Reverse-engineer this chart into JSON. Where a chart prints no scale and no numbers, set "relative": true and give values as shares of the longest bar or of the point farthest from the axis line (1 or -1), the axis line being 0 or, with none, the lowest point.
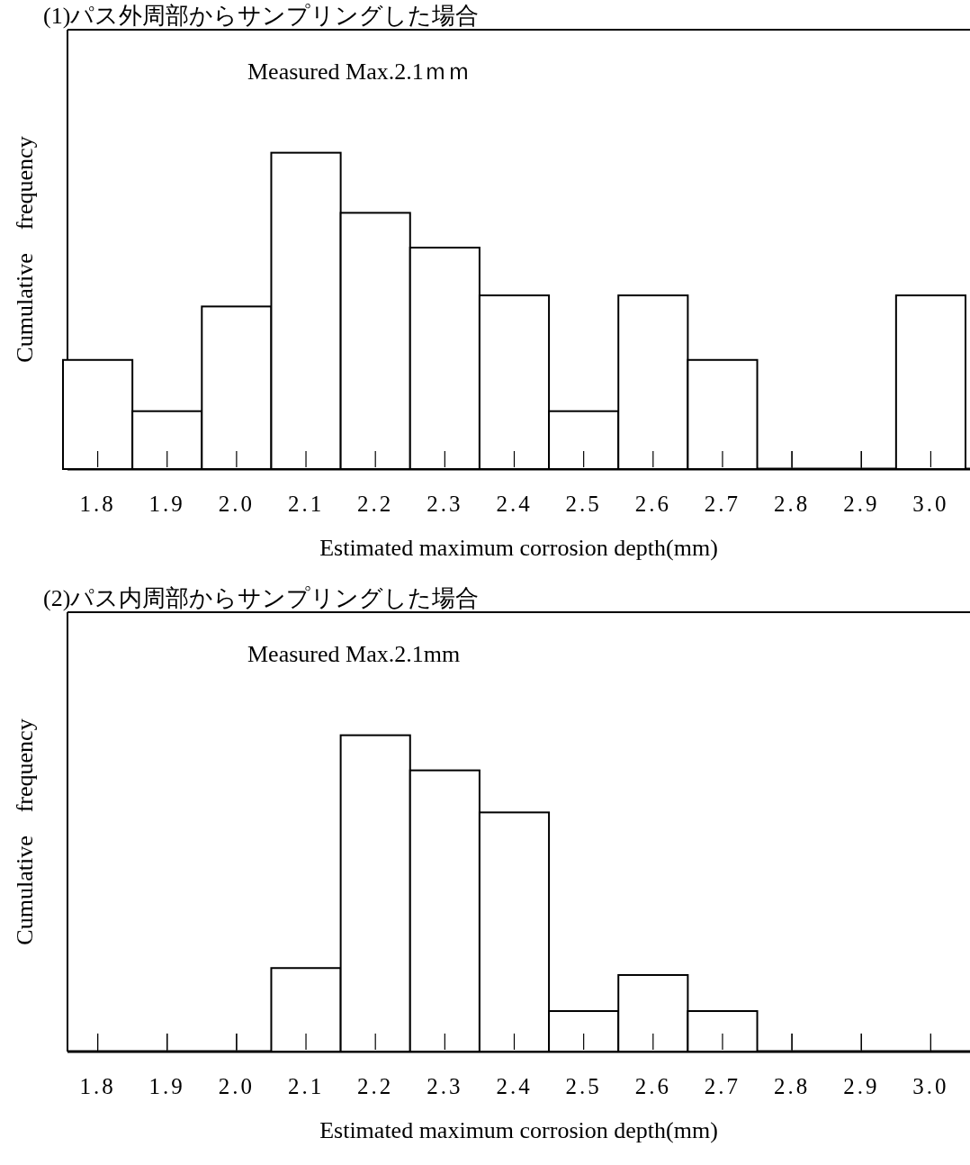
{
  "chart_data": [
    {
      "type": "bar",
      "title": "(1)パス外周部からサンプリングした場合",
      "xlabel": "Estimated maximum corrosion depth(mm)",
      "ylabel": "Cumulative　frequency",
      "annotations": [
        "Measured Max.2.1ｍｍ"
      ],
      "relative": true,
      "color": "#ffffff",
      "categories": [
        "1.8",
        "1.9",
        "2.0",
        "2.1",
        "2.2",
        "2.3",
        "2.4",
        "2.5",
        "2.6",
        "2.7",
        "2.8",
        "2.9",
        "3.0"
      ],
      "values": [
        0.345,
        0.183,
        0.514,
        1,
        0.81,
        0.7,
        0.549,
        0.183,
        0.549,
        0.345,
        0,
        0,
        0.549
      ]
    },
    {
      "type": "bar",
      "title": "(2)パス内周部からサンプリングした場合",
      "xlabel": "Estimated maximum corrosion depth(mm)",
      "ylabel": "Cumulative　frequency",
      "annotations": [
        "Measured Max.2.1mm"
      ],
      "relative": true,
      "color": "#ffffff",
      "categories": [
        "1.8",
        "1.9",
        "2.0",
        "2.1",
        "2.2",
        "2.3",
        "2.4",
        "2.5",
        "2.6",
        "2.7",
        "2.8",
        "2.9",
        "3.0"
      ],
      "values": [
        0,
        0,
        0,
        0.264,
        1,
        0.889,
        0.756,
        0.128,
        0.242,
        0.128,
        0,
        0,
        0
      ]
    }
  ]
}
